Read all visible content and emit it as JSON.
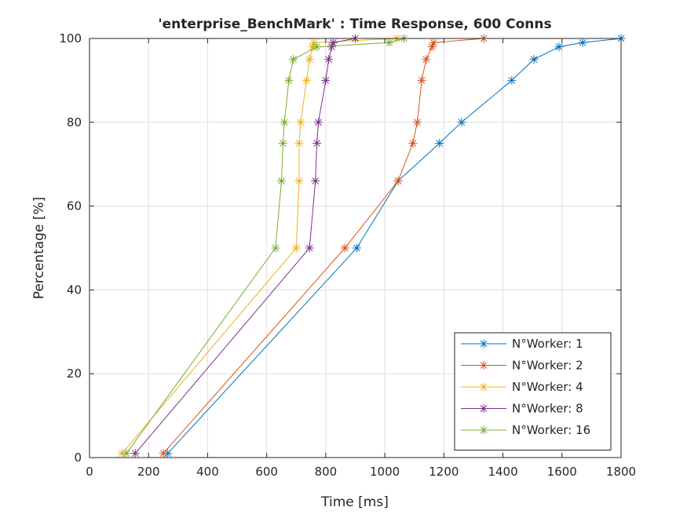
{
  "chart_data": {
    "type": "line",
    "title": "'enterprise_BenchMark' : Time Response, 600 Conns",
    "xlabel": "Time [ms]",
    "ylabel": "Percentage [%]",
    "xlim": [
      0,
      1800
    ],
    "ylim": [
      0,
      100
    ],
    "xticks": [
      0,
      200,
      400,
      600,
      800,
      1000,
      1200,
      1400,
      1600,
      1800
    ],
    "yticks": [
      0,
      20,
      40,
      60,
      80,
      100
    ],
    "grid": true,
    "legend_position": "bottom-right",
    "marker": "asterisk",
    "series": [
      {
        "name": "N°Worker: 1",
        "color": "#0072BD",
        "points": [
          [
            265,
            1
          ],
          [
            905,
            50
          ],
          [
            1045,
            66
          ],
          [
            1185,
            75
          ],
          [
            1260,
            80
          ],
          [
            1430,
            90
          ],
          [
            1505,
            95
          ],
          [
            1590,
            98
          ],
          [
            1670,
            99
          ],
          [
            1800,
            100
          ]
        ]
      },
      {
        "name": "N°Worker: 2",
        "color": "#D95319",
        "points": [
          [
            250,
            1
          ],
          [
            865,
            50
          ],
          [
            1045,
            66
          ],
          [
            1095,
            75
          ],
          [
            1110,
            80
          ],
          [
            1125,
            90
          ],
          [
            1140,
            95
          ],
          [
            1160,
            98
          ],
          [
            1165,
            99
          ],
          [
            1335,
            100
          ]
        ]
      },
      {
        "name": "N°Worker: 4",
        "color": "#EDB120",
        "points": [
          [
            110,
            1
          ],
          [
            700,
            50
          ],
          [
            710,
            66
          ],
          [
            710,
            75
          ],
          [
            715,
            80
          ],
          [
            735,
            90
          ],
          [
            745,
            95
          ],
          [
            755,
            98
          ],
          [
            760,
            99
          ],
          [
            1040,
            100
          ]
        ]
      },
      {
        "name": "N°Worker: 8",
        "color": "#7E2F8E",
        "points": [
          [
            155,
            1
          ],
          [
            745,
            50
          ],
          [
            765,
            66
          ],
          [
            770,
            75
          ],
          [
            775,
            80
          ],
          [
            800,
            90
          ],
          [
            810,
            95
          ],
          [
            820,
            98
          ],
          [
            825,
            99
          ],
          [
            900,
            100
          ]
        ]
      },
      {
        "name": "N°Worker: 16",
        "color": "#77AC30",
        "points": [
          [
            125,
            1
          ],
          [
            630,
            50
          ],
          [
            650,
            66
          ],
          [
            655,
            75
          ],
          [
            660,
            80
          ],
          [
            675,
            90
          ],
          [
            690,
            95
          ],
          [
            770,
            98
          ],
          [
            1015,
            99
          ],
          [
            1065,
            100
          ]
        ]
      }
    ]
  }
}
